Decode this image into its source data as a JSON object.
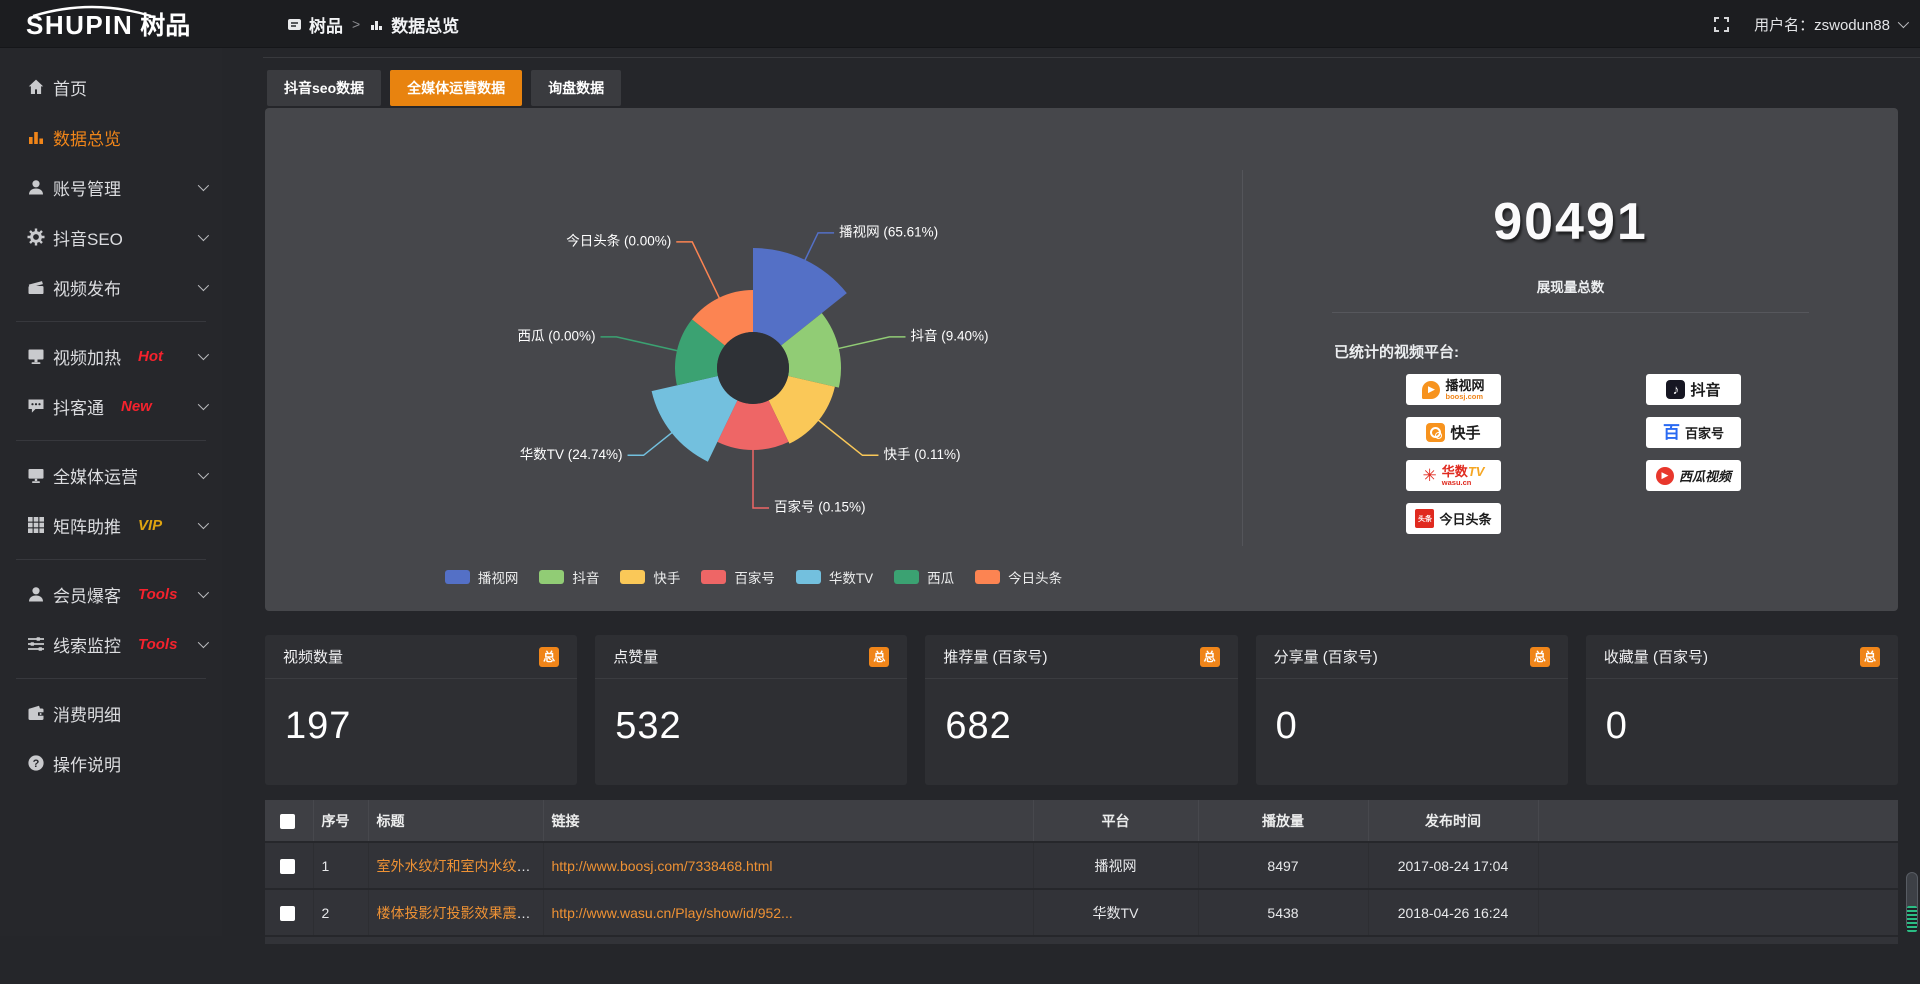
{
  "header": {
    "logo_en": "SHUPIN",
    "logo_cn": "树品",
    "breadcrumb": {
      "root": "树品",
      "sep": ">",
      "current": "数据总览"
    },
    "user_label": "用户名：zswodun88"
  },
  "sidebar": {
    "items": [
      {
        "label": "首页"
      },
      {
        "label": "数据总览"
      },
      {
        "label": "账号管理"
      },
      {
        "label": "抖音SEO"
      },
      {
        "label": "视频发布"
      },
      {
        "label": "视频加热",
        "badge": "Hot",
        "badge_color": "#f5222d"
      },
      {
        "label": "抖客通",
        "badge": "New",
        "badge_color": "#f5222d"
      },
      {
        "label": "全媒体运营"
      },
      {
        "label": "矩阵助推",
        "badge": "VIP",
        "badge_color": "#dfa410"
      },
      {
        "label": "会员爆客",
        "badge": "Tools",
        "badge_color": "#f5222d"
      },
      {
        "label": "线索监控",
        "badge": "Tools",
        "badge_color": "#f5222d"
      },
      {
        "label": "消费明细"
      },
      {
        "label": "操作说明"
      }
    ]
  },
  "tabs": [
    {
      "label": "抖音seo数据",
      "active": false
    },
    {
      "label": "全媒体运营数据",
      "active": true
    },
    {
      "label": "询盘数据",
      "active": false
    }
  ],
  "chart_data": {
    "type": "pie",
    "variant": "nightingale-rose",
    "title": "",
    "legend_position": "bottom",
    "inner_radius": 36,
    "series": [
      {
        "name": "播视网",
        "value": 65.61,
        "pct": "65.61%",
        "color": "#5470c6",
        "r": 120,
        "label_dist": 150
      },
      {
        "name": "抖音",
        "value": 9.4,
        "pct": "9.40%",
        "color": "#91cc75",
        "r": 88,
        "label_dist": 140
      },
      {
        "name": "快手",
        "value": 0.11,
        "pct": "0.11%",
        "color": "#fac858",
        "r": 84,
        "label_dist": 140
      },
      {
        "name": "百家号",
        "value": 0.15,
        "pct": "0.15%",
        "color": "#ee6666",
        "r": 82,
        "label_dist": 140
      },
      {
        "name": "华数TV",
        "value": 24.74,
        "pct": "24.74%",
        "color": "#73c0de",
        "r": 104,
        "label_dist": 140
      },
      {
        "name": "西瓜",
        "value": 0.0,
        "pct": "0.00%",
        "color": "#3ba272",
        "r": 78,
        "label_dist": 140
      },
      {
        "name": "今日头条",
        "value": 0.0,
        "pct": "0.00%",
        "color": "#fc8452",
        "r": 78,
        "label_dist": 140
      }
    ]
  },
  "overview": {
    "total": "90491",
    "total_label": "展现量总数",
    "platforms_label": "已统计的视频平台:",
    "platforms": {
      "boosj": {
        "name": "播视网",
        "sub": "boosj.com"
      },
      "kuaishou": {
        "name": "快手"
      },
      "wasu": {
        "name": "华数",
        "name2": "TV",
        "sub": "wasu.cn"
      },
      "toutiao": {
        "name": "今日头条",
        "logo_text": "头条"
      },
      "douyin": {
        "name": "抖音"
      },
      "baijiahao": {
        "name": "百家号",
        "logo_text": "百"
      },
      "xigua": {
        "name": "西瓜视频"
      }
    }
  },
  "cards": [
    {
      "title": "视频数量",
      "badge": "总",
      "value": "197"
    },
    {
      "title": "点赞量",
      "badge": "总",
      "value": "532"
    },
    {
      "title": "推荐量 (百家号)",
      "badge": "总",
      "value": "682"
    },
    {
      "title": "分享量 (百家号)",
      "badge": "总",
      "value": "0"
    },
    {
      "title": "收藏量 (百家号)",
      "badge": "总",
      "value": "0"
    }
  ],
  "table": {
    "headers": [
      "序号",
      "标题",
      "链接",
      "平台",
      "播放量",
      "发布时间"
    ],
    "rows": [
      {
        "no": "1",
        "title": "室外水纹灯和室内水纹灯的区别和简介",
        "link": "http://www.boosj.com/7338468.html",
        "platform": "播视网",
        "plays": "8497",
        "time": "2017-08-24 17:04"
      },
      {
        "no": "2",
        "title": "楼体投影灯投影效果震撼上市",
        "link": "http://www.wasu.cn/Play/show/id/952...",
        "platform": "华数TV",
        "plays": "5438",
        "time": "2018-04-26 16:24"
      }
    ]
  },
  "colors": {
    "accent": "#f08519",
    "active_tab": "#e8830f",
    "link": "#ef9234"
  }
}
